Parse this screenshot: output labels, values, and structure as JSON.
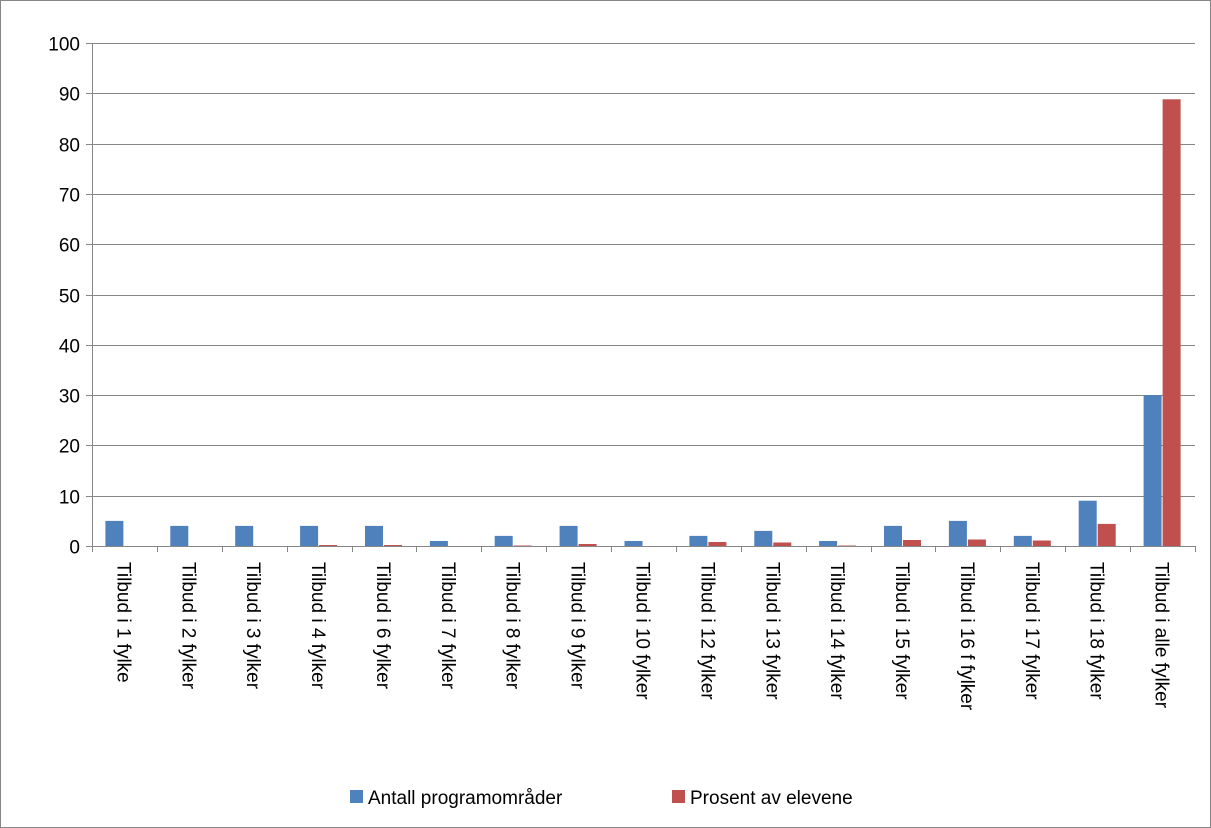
{
  "chart_data": {
    "type": "bar",
    "title": "",
    "xlabel": "",
    "ylabel": "",
    "ylim": [
      0,
      100
    ],
    "yticks": [
      0,
      10,
      20,
      30,
      40,
      50,
      60,
      70,
      80,
      90,
      100
    ],
    "grid": true,
    "legend_position": "bottom",
    "categories": [
      "Tilbud i 1 fylke",
      "Tilbud i 2 fylker",
      "Tilbud i 3 fylker",
      "Tilbud i 4 fylker",
      "Tilbud i 6 fylker",
      "Tilbud i 7 fylker",
      "Tilbud i 8 fylker",
      "Tilbud i 9 fylker",
      "Tilbud i 10 fylker",
      "Tilbud i 12 fylker",
      "Tilbud i 13  fylker",
      "Tilbud i  14 fylker",
      "Tilbud i 15 fylker",
      "Tilbud i 16 f fylker",
      "Tilbud i 17 fylker",
      "Tilbud i 18 fylker",
      "Tilbud i alle fylker"
    ],
    "series": [
      {
        "name": "Antall programområder",
        "color": "#4f81bd",
        "values": [
          5,
          4,
          4,
          4,
          4,
          1,
          2,
          4,
          1,
          2,
          3,
          1,
          4,
          5,
          2,
          9,
          30
        ]
      },
      {
        "name": "Prosent av elevene",
        "color": "#c0504d",
        "values": [
          0,
          0,
          0,
          0.2,
          0.2,
          0,
          0.1,
          0.4,
          0,
          0.8,
          0.7,
          0.1,
          1.2,
          1.3,
          1.1,
          4.4,
          88.8
        ]
      }
    ]
  }
}
